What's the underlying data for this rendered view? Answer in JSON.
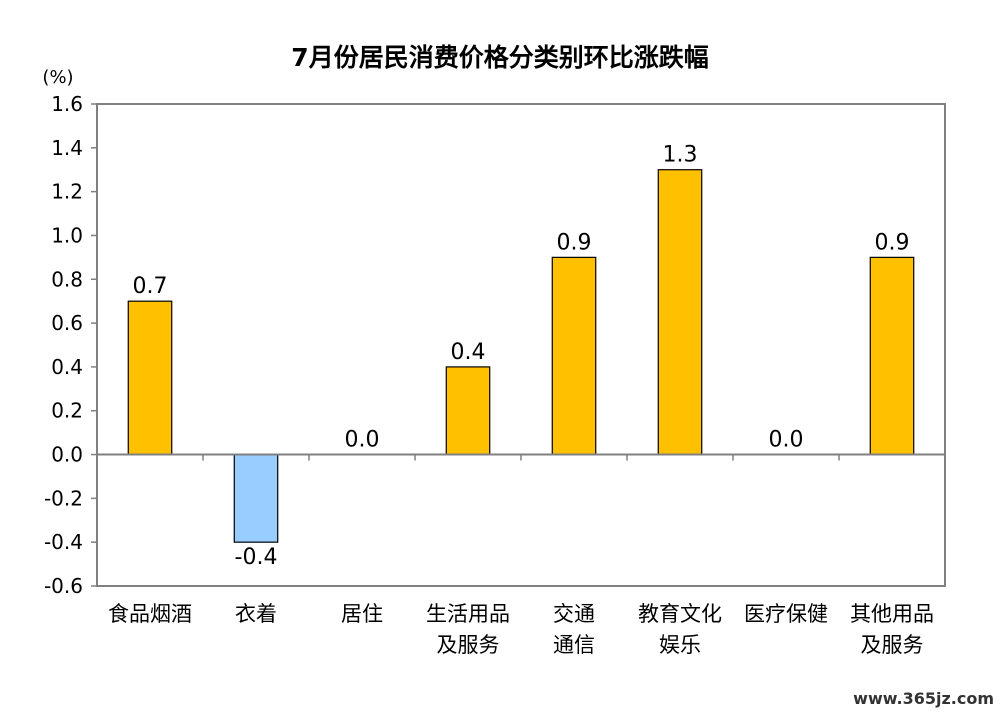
{
  "chart_data": {
    "type": "bar",
    "title": "7月份居民消费价格分类别环比涨跌幅",
    "unit": "(%)",
    "xlabel": "",
    "ylabel": "",
    "ylim": [
      -0.6,
      1.6
    ],
    "ytick_step": 0.2,
    "grid": false,
    "categories": [
      [
        "食品烟酒"
      ],
      [
        "衣着"
      ],
      [
        "居住"
      ],
      [
        "生活用品",
        "及服务"
      ],
      [
        "交通",
        "通信"
      ],
      [
        "教育文化",
        "娱乐"
      ],
      [
        "医疗保健"
      ],
      [
        "其他用品",
        "及服务"
      ]
    ],
    "values": [
      0.7,
      -0.4,
      0.0,
      0.4,
      0.9,
      1.3,
      0.0,
      0.9
    ],
    "data_labels": [
      "0.7",
      "-0.4",
      "0.0",
      "0.4",
      "0.9",
      "1.3",
      "0.0",
      "0.9"
    ],
    "colors": {
      "positive": "#FFC000",
      "negative": "#99CCFF",
      "bar_border": "#000000",
      "axis": "#808080"
    }
  },
  "watermark": "www.365jz.com"
}
